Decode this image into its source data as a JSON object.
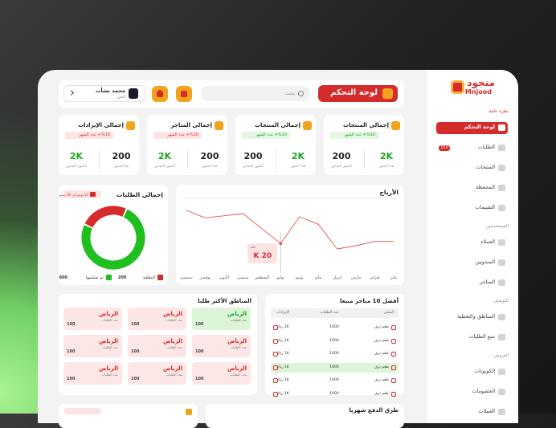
{
  "brand": {
    "name": "منجود",
    "latin": "Mnjood"
  },
  "sidebar": {
    "sections": [
      {
        "title": "نظرة عامة",
        "items": [
          {
            "label": "لوحة التحكم",
            "active": true
          },
          {
            "label": "الطلبات",
            "badge": 150
          },
          {
            "label": "المنتجات"
          },
          {
            "label": "المحفظة"
          },
          {
            "label": "التقييمات"
          }
        ]
      },
      {
        "title": "المستخدمين",
        "items": [
          {
            "label": "العملاء"
          },
          {
            "label": "المندوبين"
          },
          {
            "label": "المتاجر"
          }
        ]
      },
      {
        "title": "التوصيل",
        "items": [
          {
            "label": "المناطق والتغطية"
          },
          {
            "label": "تتبع الطلبات"
          }
        ]
      },
      {
        "title": "العروض",
        "items": [
          {
            "label": "الكوبونات"
          },
          {
            "label": "الخصومات"
          },
          {
            "label": "العملات"
          }
        ]
      }
    ]
  },
  "header": {
    "title": "لوحة التحكم",
    "search": "بحث",
    "user": {
      "name": "محمد نشأت",
      "role": "ادمن"
    }
  },
  "stats": [
    {
      "title": "إجمالي المنتجات",
      "change": "%10+ عدد الشهر",
      "trend": "up",
      "figures": [
        {
          "value": "2K",
          "label": "هذا الشهر",
          "color": "#1fa61f"
        },
        {
          "value": 200,
          "label": "الشهر السابق",
          "color": "#222222"
        }
      ]
    },
    {
      "title": "إجمالي المنتجات",
      "change": "%10+ عدد الشهر",
      "trend": "up",
      "figures": [
        {
          "value": "2K",
          "label": "هذا الشهر",
          "color": "#1fa61f"
        },
        {
          "value": 200,
          "label": "الشهر السابق",
          "color": "#222222"
        }
      ]
    },
    {
      "title": "إجمالي المتاجر",
      "change": "%10+ عدد الشهر",
      "trend": "down",
      "figures": [
        {
          "value": 200,
          "label": "هذا الشهر",
          "color": "#222222"
        },
        {
          "value": "2K",
          "label": "الشهر السابق",
          "color": "#1fa61f"
        }
      ]
    },
    {
      "title": "إجمالي الإيرادات",
      "change": "%10+ عدد الشهر",
      "trend": "down",
      "figures": [
        {
          "value": 200,
          "label": "هذا الشهر",
          "color": "#222222"
        },
        {
          "value": "2K",
          "label": "الشهر السابق",
          "color": "#1fa61f"
        }
      ]
    }
  ],
  "chart_data": [
    {
      "type": "line",
      "title": "الأرباح",
      "categories": [
        "يناير",
        "فبراير",
        "مارس",
        "ابريل",
        "مايو",
        "يونيو",
        "يوليو",
        "أغسطس",
        "سبتمبر",
        "أكتوبر",
        "نوفمبر",
        "ديسمبر"
      ],
      "values": [
        21,
        21,
        19,
        17.5,
        29,
        32.5,
        20,
        27,
        34,
        33,
        32,
        35.5
      ],
      "value_labels": [
        null,
        null,
        null,
        null,
        null,
        null,
        "20 K",
        null,
        null,
        null,
        null,
        null
      ],
      "color": "#e0574c",
      "ylim": [
        10,
        40
      ]
    },
    {
      "type": "pie",
      "title": "إجمالي الطلبات",
      "subtitle": "12 يونيو إلى 19 يونيو",
      "categories": [
        "المغلقة",
        "تم تسليمها"
      ],
      "values": [
        200,
        600
      ],
      "colors": [
        "#d62b2b",
        "#1fbf1f"
      ]
    }
  ],
  "regions": {
    "title": "المناطق الأكثر طلبا",
    "items": [
      {
        "city": "الرياض",
        "label": "عدد الطلبات",
        "count": 100,
        "active": true
      },
      {
        "city": "الرياض",
        "label": "عدد الطلبات",
        "count": 100
      },
      {
        "city": "الرياض",
        "label": "عدد الطلبات",
        "count": 100
      },
      {
        "city": "الرياض",
        "label": "عدد الطلبات",
        "count": 100
      },
      {
        "city": "الرياض",
        "label": "عدد الطلبات",
        "count": 100
      },
      {
        "city": "الرياض",
        "label": "عدد الطلبات",
        "count": 100
      },
      {
        "city": "الرياض",
        "label": "عدد الطلبات",
        "count": 100
      },
      {
        "city": "الرياض",
        "label": "عدد الطلبات",
        "count": 100
      },
      {
        "city": "الرياض",
        "label": "عدد الطلبات",
        "count": 100
      }
    ]
  },
  "top_stores": {
    "title": "أفضل 10 متاجر مبيعا",
    "headers": [
      "المتجر",
      "عدد الطلبات",
      "الإيرادات"
    ],
    "rows": [
      {
        "name": "طعم ترف",
        "orders": 1000,
        "revenue": "1K ريال"
      },
      {
        "name": "طعم ترف",
        "orders": 1000,
        "revenue": "1K ريال"
      },
      {
        "name": "طعم ترف",
        "orders": 1000,
        "revenue": "1K ريال"
      },
      {
        "name": "طعم ترف",
        "orders": 1000,
        "revenue": "1K ريال",
        "active": true
      },
      {
        "name": "طعم ترف",
        "orders": 1000,
        "revenue": "1K ريال"
      },
      {
        "name": "طعم ترف",
        "orders": 1000,
        "revenue": "1K ريال"
      },
      {
        "name": "طعم ترف",
        "orders": 1000,
        "revenue": "1K ريال"
      }
    ]
  },
  "payments": {
    "title": "طرق الدفع شهريا"
  }
}
